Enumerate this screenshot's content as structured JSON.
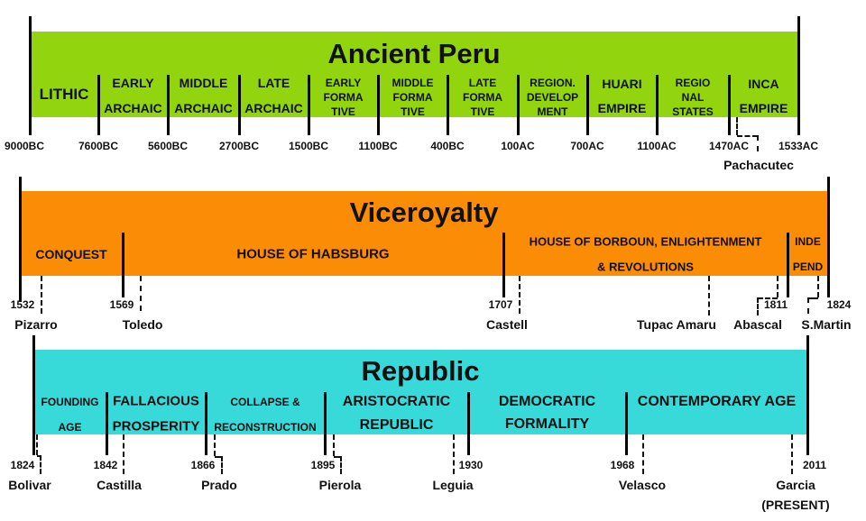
{
  "colors": {
    "ancient": "#92d50f",
    "viceroyalty": "#fb8c06",
    "republic": "#38d9d9"
  },
  "ancient": {
    "title": "Ancient Peru",
    "periods": [
      {
        "lines": [
          "LITHIC"
        ]
      },
      {
        "lines": [
          "EARLY",
          "ARCHAIC"
        ]
      },
      {
        "lines": [
          "MIDDLE",
          "ARCHAIC"
        ]
      },
      {
        "lines": [
          "LATE",
          "ARCHAIC"
        ]
      },
      {
        "lines": [
          "EARLY",
          "FORMA",
          "TIVE"
        ]
      },
      {
        "lines": [
          "MIDDLE",
          "FORMA",
          "TIVE"
        ]
      },
      {
        "lines": [
          "LATE",
          "FORMA",
          "TIVE"
        ]
      },
      {
        "lines": [
          "REGION.",
          "DEVELOP",
          "MENT"
        ]
      },
      {
        "lines": [
          "HUARI",
          "EMPIRE"
        ]
      },
      {
        "lines": [
          "REGIO",
          "NAL",
          "STATES"
        ]
      },
      {
        "lines": [
          "INCA",
          "EMPIRE"
        ]
      }
    ],
    "years": [
      "9000BC",
      "7600BC",
      "5600BC",
      "2700BC",
      "1500BC",
      "1100BC",
      "400BC",
      "100AC",
      "700AC",
      "1100AC",
      "1470AC",
      "1533AC"
    ],
    "people": [
      "Pachacutec"
    ]
  },
  "viceroyalty": {
    "title": "Viceroyalty",
    "periods": [
      {
        "lines": [
          "CONQUEST"
        ]
      },
      {
        "lines": [
          "HOUSE OF HABSBURG"
        ]
      },
      {
        "lines": [
          "HOUSE OF BORBOUN, ENLIGHTENMENT",
          "& REVOLUTIONS"
        ]
      },
      {
        "lines": [
          "INDE",
          "PEND"
        ]
      }
    ],
    "years": [
      "1532",
      "1569",
      "1707",
      "1811",
      "1824"
    ],
    "people": [
      "Pizarro",
      "Toledo",
      "Castell",
      "Tupac Amaru",
      "Abascal",
      "S.Martin"
    ]
  },
  "republic": {
    "title": "Republic",
    "periods": [
      {
        "lines": [
          "FOUNDING",
          "AGE"
        ]
      },
      {
        "lines": [
          "FALLACIOUS",
          "PROSPERITY"
        ]
      },
      {
        "lines": [
          "COLLAPSE &",
          "RECONSTRUCTION"
        ]
      },
      {
        "lines": [
          "ARISTOCRATIC",
          "REPUBLIC"
        ]
      },
      {
        "lines": [
          "DEMOCRATIC",
          "FORMALITY"
        ]
      },
      {
        "lines": [
          "CONTEMPORARY AGE"
        ]
      }
    ],
    "years": [
      "1824",
      "1842",
      "1866",
      "1895",
      "1930",
      "1968",
      "2011"
    ],
    "people": [
      "Bolivar",
      "Castilla",
      "Prado",
      "Pierola",
      "Leguia",
      "Velasco",
      "Garcia",
      "(PRESENT)"
    ]
  }
}
